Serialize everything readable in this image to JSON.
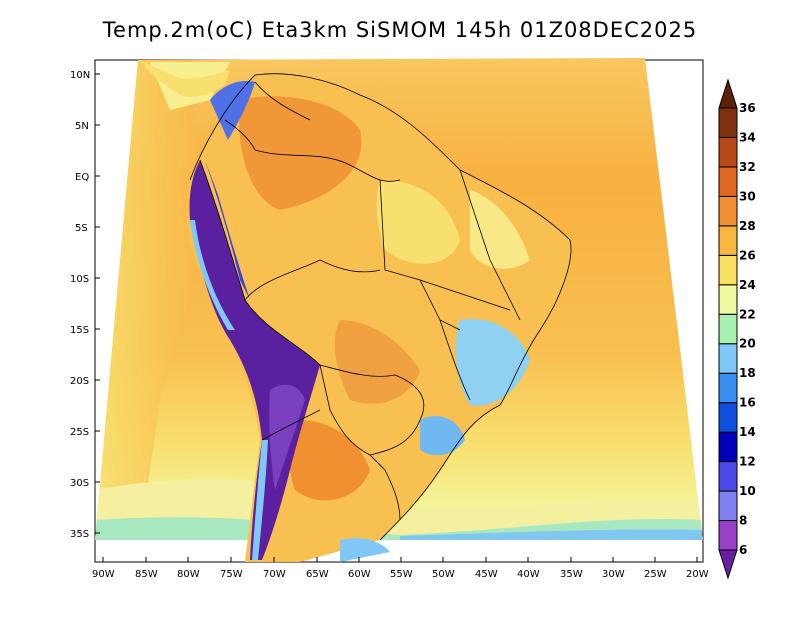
{
  "title": "Temp.2m(oC) Eta3km SiSMOM 145h 01Z08DEC2025",
  "lat_labels": [
    "10N",
    "5N",
    "EQ",
    "5S",
    "10S",
    "15S",
    "20S",
    "25S",
    "30S",
    "35S"
  ],
  "lon_labels": [
    "90W",
    "85W",
    "80W",
    "75W",
    "70W",
    "65W",
    "60W",
    "55W",
    "50W",
    "45W",
    "40W",
    "35W",
    "30W",
    "25W",
    "20W"
  ],
  "colorbar": {
    "levels": [
      "6",
      "8",
      "10",
      "12",
      "14",
      "16",
      "18",
      "20",
      "22",
      "24",
      "26",
      "28",
      "30",
      "32",
      "34",
      "36"
    ],
    "colors": [
      "#6a1fa0",
      "#9a3fc8",
      "#8080f0",
      "#4a4ae8",
      "#0000b8",
      "#1050e0",
      "#3a90f0",
      "#80c8f8",
      "#a8f0b0",
      "#f0f8a0",
      "#f8e060",
      "#f8b840",
      "#f09030",
      "#e06820",
      "#b84818",
      "#803010",
      "#5a2008"
    ]
  },
  "legend_colors": {
    "ocean_warm": "#f8a838",
    "ocean_mid": "#f8c858",
    "ocean_cool": "#f8f090",
    "ocean_cold": "#a0e8b8",
    "land_hot": "#f09030",
    "andes": "#5a20a0",
    "highlands": "#80c8f8"
  }
}
